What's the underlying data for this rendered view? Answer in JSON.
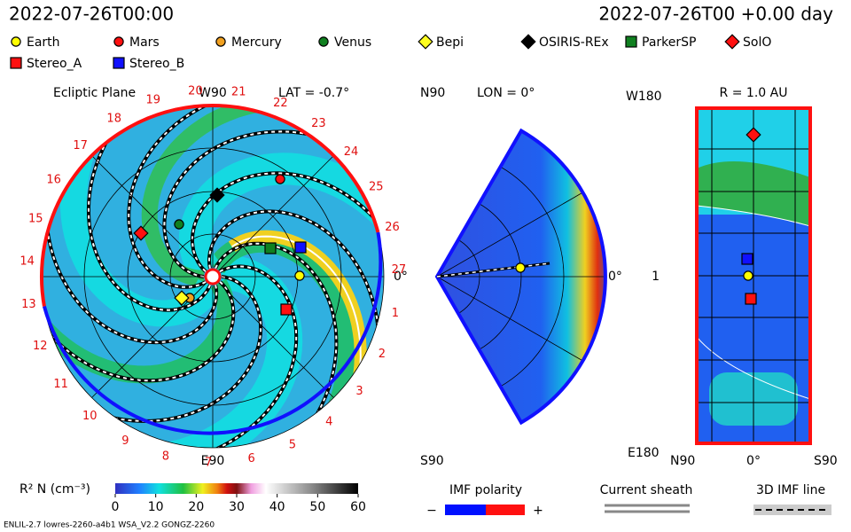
{
  "header": {
    "date_left": "2022-07-26T00:00",
    "date_right": "2022-07-26T00 +0.00 day"
  },
  "spacecraft": [
    {
      "name": "Earth",
      "color": "#ffff00",
      "marker": "circle"
    },
    {
      "name": "Mars",
      "color": "#ff1010",
      "marker": "circle"
    },
    {
      "name": "Mercury",
      "color": "#f0a020",
      "marker": "circle"
    },
    {
      "name": "Venus",
      "color": "#108020",
      "marker": "circle"
    },
    {
      "name": "Bepi",
      "color": "#ffff20",
      "marker": "diamond"
    },
    {
      "name": "OSIRIS-REx",
      "color": "#000000",
      "marker": "diamond"
    },
    {
      "name": "ParkerSP",
      "color": "#108020",
      "marker": "square"
    },
    {
      "name": "SolO",
      "color": "#ff1010",
      "marker": "diamond"
    },
    {
      "name": "Stereo_A",
      "color": "#ff1010",
      "marker": "square"
    },
    {
      "name": "Stereo_B",
      "color": "#1010ff",
      "marker": "square"
    }
  ],
  "ecliptic": {
    "title": "Ecliptic Plane",
    "top": "W90",
    "lat": "LAT = -0.7°",
    "right": "0°",
    "bottom": "E90",
    "sectors": [
      "1",
      "2",
      "3",
      "4",
      "5",
      "6",
      "7",
      "8",
      "9",
      "10",
      "11",
      "12",
      "13",
      "14",
      "15",
      "16",
      "17",
      "18",
      "19",
      "20",
      "21",
      "22",
      "23",
      "24",
      "25",
      "26",
      "27"
    ]
  },
  "meridional": {
    "top": "N90",
    "lon": "LON = 0°",
    "right": "0°",
    "bottom": "S90"
  },
  "radial": {
    "top_left": "W180",
    "title": "R = 1.0 AU",
    "mid": "1",
    "bottom_left": "E180",
    "x_left": "N90",
    "x_mid": "0°",
    "x_right": "S90"
  },
  "colorbar": {
    "label": "R² N (cm⁻³)",
    "range": [
      0,
      60
    ],
    "ticks": [
      0,
      10,
      20,
      30,
      40,
      50,
      60
    ]
  },
  "key": {
    "imf": "IMF polarity",
    "minus": "−",
    "plus": "+",
    "sheath": "Current sheath",
    "imf_line": "3D IMF line"
  },
  "footer": "ENLIL-2.7 lowres-2260-a4b1 WSA_V2.2 GONGZ-2260"
}
